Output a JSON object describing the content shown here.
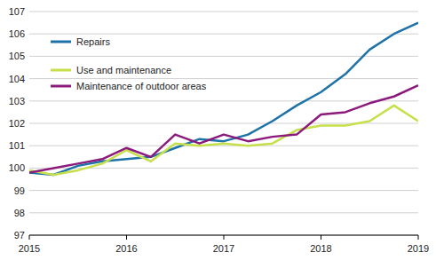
{
  "chart_data": {
    "type": "line",
    "categories": [
      "2015",
      null,
      null,
      null,
      "2016",
      null,
      null,
      null,
      "2017",
      null,
      null,
      null,
      "2018",
      null,
      null,
      null,
      "2019"
    ],
    "series": [
      {
        "name": "Repairs",
        "color": "#1d72a8",
        "values": [
          99.8,
          99.7,
          100.1,
          100.3,
          100.4,
          100.5,
          100.9,
          101.3,
          101.2,
          101.5,
          102.1,
          102.8,
          103.4,
          104.2,
          105.3,
          106.0,
          106.5
        ]
      },
      {
        "name": "Use and maintenance",
        "color": "#c5e04a",
        "values": [
          99.9,
          99.7,
          99.9,
          100.2,
          100.8,
          100.3,
          101.1,
          101.0,
          101.1,
          101.0,
          101.1,
          101.7,
          101.9,
          101.9,
          102.1,
          102.8,
          102.1
        ]
      },
      {
        "name": "Maintenance of outdoor areas",
        "color": "#8c1a7c",
        "values": [
          99.8,
          100.0,
          100.2,
          100.4,
          100.9,
          100.5,
          101.5,
          101.1,
          101.5,
          101.2,
          101.4,
          101.5,
          102.4,
          102.5,
          102.9,
          103.2,
          103.7
        ]
      }
    ],
    "ylim": [
      97,
      107
    ],
    "yticks": [
      97,
      98,
      99,
      100,
      101,
      102,
      103,
      104,
      105,
      106,
      107
    ],
    "grid": true,
    "legend": "upper left"
  }
}
